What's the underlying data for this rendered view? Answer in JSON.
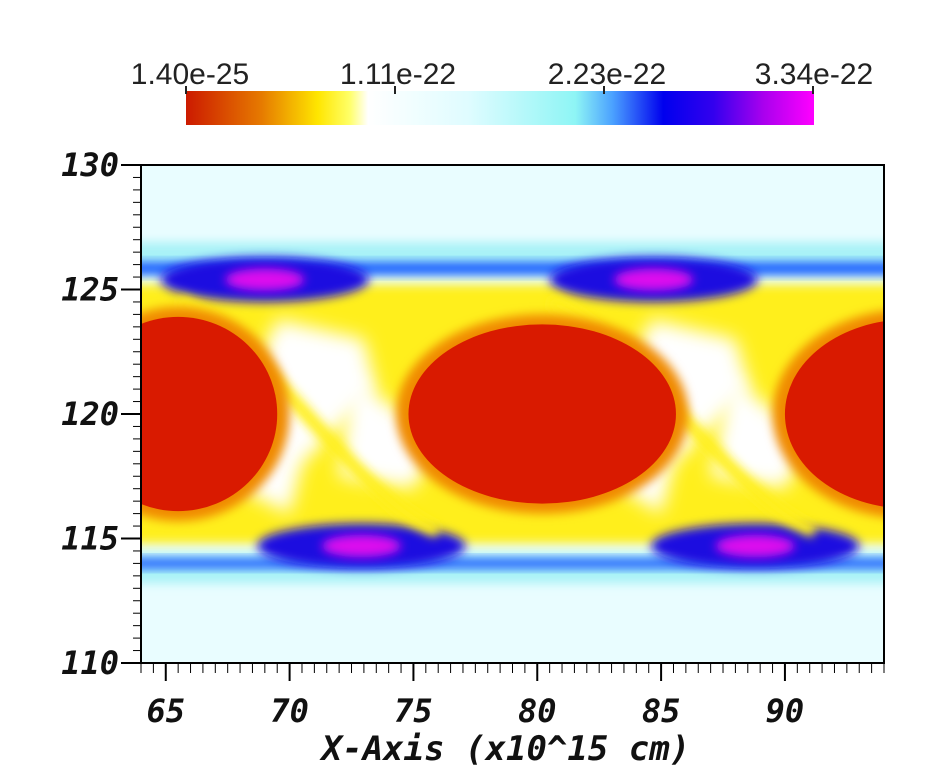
{
  "colorbar": {
    "labels": [
      "1.40e-25",
      "1.11e-22",
      "2.23e-22",
      "3.34e-22"
    ],
    "min": 1.4e-25,
    "max": 3.34e-22,
    "stops": [
      {
        "t": 0.0,
        "color": "#cc1a00"
      },
      {
        "t": 0.12,
        "color": "#e67a00"
      },
      {
        "t": 0.21,
        "color": "#ffe600"
      },
      {
        "t": 0.26,
        "color": "#ffff66"
      },
      {
        "t": 0.29,
        "color": "#ffffff"
      },
      {
        "t": 0.45,
        "color": "#dffcff"
      },
      {
        "t": 0.62,
        "color": "#8ef5f5"
      },
      {
        "t": 0.68,
        "color": "#4aa0ff"
      },
      {
        "t": 0.76,
        "color": "#0000ee"
      },
      {
        "t": 0.84,
        "color": "#3300ee"
      },
      {
        "t": 0.92,
        "color": "#aa00ee"
      },
      {
        "t": 1.0,
        "color": "#ff00ff"
      }
    ]
  },
  "chart_data": {
    "type": "heatmap",
    "xlabel": "X-Axis (x10^15 cm)",
    "ylabel": "",
    "xlim": [
      64,
      94
    ],
    "ylim": [
      110,
      130
    ],
    "x_ticks": [
      65,
      70,
      75,
      80,
      85,
      90
    ],
    "y_ticks": [
      110,
      115,
      120,
      125,
      130
    ],
    "x_tick_labels": [
      "65",
      "70",
      "75",
      "80",
      "85",
      "90"
    ],
    "y_tick_labels": [
      "110",
      "115",
      "120",
      "125",
      "130"
    ],
    "colors": {
      "background": "#e9fdff",
      "edge_light": "#a9f2f7",
      "edge_blue": "#1e5cff",
      "dark_blue": "#1a0fe0",
      "magenta": "#dd11ee",
      "yellow": "#ffef1a",
      "white": "#ffffff",
      "red": "#d91a00"
    },
    "features": {
      "red_eddies": [
        {
          "cx": 65.5,
          "cy": 120.0,
          "rx": 4.0,
          "ry": 3.9
        },
        {
          "cx": 80.2,
          "cy": 120.0,
          "rx": 5.4,
          "ry": 3.6
        },
        {
          "cx": 95.0,
          "cy": 120.0,
          "rx": 5.0,
          "ry": 3.8
        }
      ],
      "magenta_spots": [
        {
          "x": 69.0,
          "y": 125.4
        },
        {
          "x": 84.7,
          "y": 125.4
        },
        {
          "x": 72.9,
          "y": 114.7
        },
        {
          "x": 88.8,
          "y": 114.7
        }
      ]
    }
  }
}
